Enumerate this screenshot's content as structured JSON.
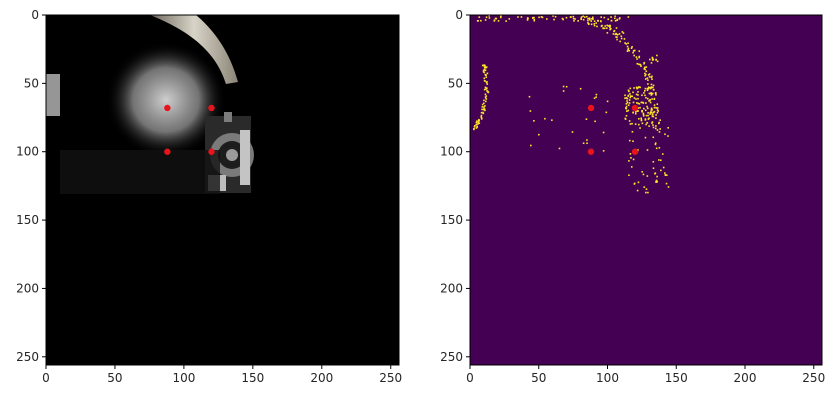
{
  "figure": {
    "background": "#ffffff",
    "axis_color": "#000000",
    "marker_color": "#e8141b"
  },
  "chart_data": [
    {
      "type": "heatmap",
      "panel": "photo",
      "title": "",
      "xlabel": "",
      "ylabel": "",
      "xlim": [
        0,
        256
      ],
      "ylim": [
        256,
        0
      ],
      "origin": "top-left",
      "xticks": [
        0,
        50,
        100,
        150,
        200,
        250
      ],
      "yticks": [
        0,
        50,
        100,
        150,
        200,
        250
      ],
      "grid": false,
      "image_description_colors": {
        "background": "#000000",
        "bright_region": "#d9d9d9",
        "wall": "#b9b3a6"
      },
      "visible_image_extent": {
        "x": [
          0,
          150
        ],
        "y": [
          0,
          130
        ]
      },
      "points": [
        {
          "x": 88,
          "y": 68
        },
        {
          "x": 120,
          "y": 68
        },
        {
          "x": 88,
          "y": 100
        },
        {
          "x": 120,
          "y": 100
        }
      ]
    },
    {
      "type": "heatmap",
      "panel": "edges",
      "title": "",
      "xlabel": "",
      "ylabel": "",
      "xlim": [
        0,
        256
      ],
      "ylim": [
        256,
        0
      ],
      "origin": "top-left",
      "xticks": [
        0,
        50,
        100,
        150,
        200,
        250
      ],
      "yticks": [
        0,
        50,
        100,
        150,
        200,
        250
      ],
      "grid": false,
      "colormap": {
        "low": "#440154",
        "high": "#fde725"
      },
      "points": [
        {
          "x": 88,
          "y": 68
        },
        {
          "x": 120,
          "y": 68
        },
        {
          "x": 88,
          "y": 100
        },
        {
          "x": 120,
          "y": 100
        }
      ]
    }
  ]
}
